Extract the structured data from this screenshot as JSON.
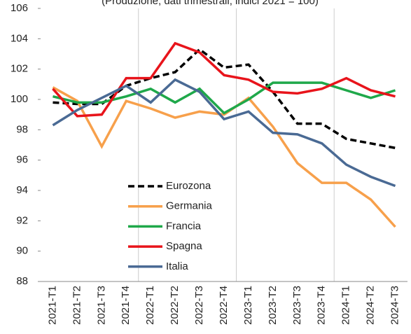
{
  "chart_data": {
    "type": "line",
    "subtitle": "(Produzione; dati trimestrali; indici 2021 = 100)",
    "categories": [
      "2021-T1",
      "2021-T2",
      "2021-T3",
      "2021-T4",
      "2022-T1",
      "2022-T2",
      "2022-T3",
      "2022-T4",
      "2023-T1",
      "2023-T2",
      "2023-T3",
      "2023-T4",
      "2024-T1",
      "2024-T2",
      "2024-T3"
    ],
    "series": [
      {
        "name": "Eurozona",
        "color": "#000000",
        "dashed": true,
        "values": [
          99.8,
          99.7,
          99.7,
          100.9,
          101.4,
          101.8,
          103.3,
          102.1,
          102.3,
          100.5,
          98.4,
          98.4,
          97.4,
          97.1,
          96.8
        ]
      },
      {
        "name": "Germania",
        "color": "#f7a04b",
        "values": [
          100.8,
          99.9,
          96.9,
          99.9,
          99.4,
          98.8,
          99.2,
          99.0,
          100.1,
          98.2,
          95.8,
          94.5,
          94.5,
          93.4,
          91.6
        ]
      },
      {
        "name": "Francia",
        "color": "#1fa84a",
        "values": [
          100.2,
          99.8,
          99.8,
          100.2,
          100.7,
          99.8,
          100.7,
          99.1,
          100.0,
          101.1,
          101.1,
          101.1,
          100.6,
          100.1,
          100.6
        ]
      },
      {
        "name": "Spagna",
        "color": "#e8141b",
        "values": [
          100.7,
          98.9,
          99.0,
          101.4,
          101.4,
          103.7,
          103.1,
          101.6,
          101.3,
          100.5,
          100.4,
          100.7,
          101.4,
          100.6,
          100.2
        ]
      },
      {
        "name": "Italia",
        "color": "#4a6a94",
        "values": [
          98.3,
          99.3,
          100.1,
          100.9,
          99.8,
          101.3,
          100.5,
          98.7,
          99.2,
          97.8,
          97.7,
          97.1,
          95.7,
          94.9,
          94.3
        ]
      }
    ],
    "ylim": [
      88,
      106
    ],
    "yticks": [
      88,
      90,
      92,
      94,
      96,
      98,
      100,
      102,
      104,
      106
    ],
    "legend": "lower left"
  }
}
